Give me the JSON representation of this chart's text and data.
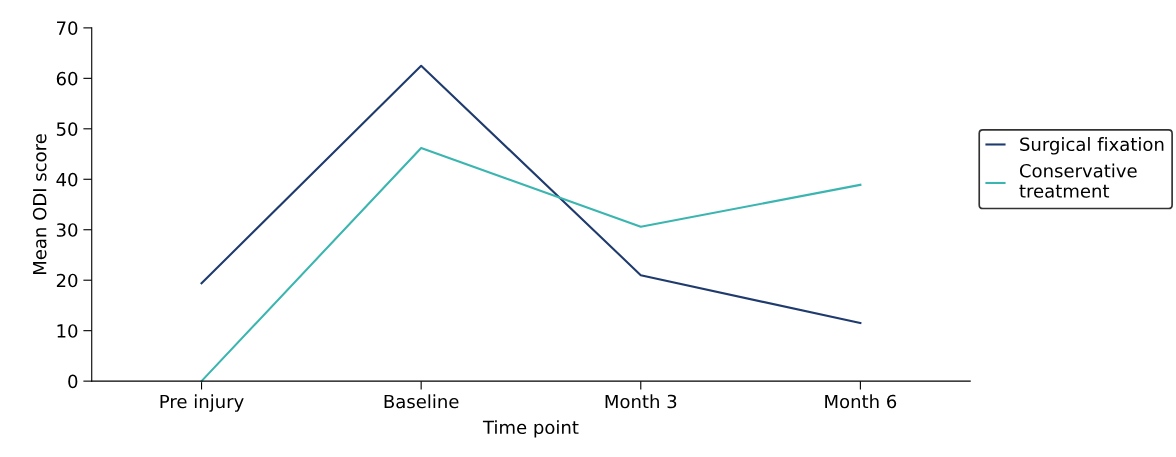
{
  "chart_data": {
    "type": "line",
    "xlabel": "Time point",
    "ylabel": "Mean ODI score",
    "categories": [
      "Pre injury",
      "Baseline",
      "Month 3",
      "Month 6"
    ],
    "series": [
      {
        "name": "Surgical fixation",
        "color": "#1f3b6e",
        "values": [
          19.4,
          62.5,
          21.0,
          11.5
        ]
      },
      {
        "name": "Conservative treatment",
        "color": "#3ab5b0",
        "values": [
          0,
          46.2,
          30.6,
          38.9
        ]
      }
    ],
    "ylim": [
      0,
      70
    ],
    "yticks": [
      0,
      10,
      20,
      30,
      40,
      50,
      60,
      70
    ],
    "grid": false,
    "legend": "right",
    "marker": "none",
    "line_style": "solid"
  }
}
